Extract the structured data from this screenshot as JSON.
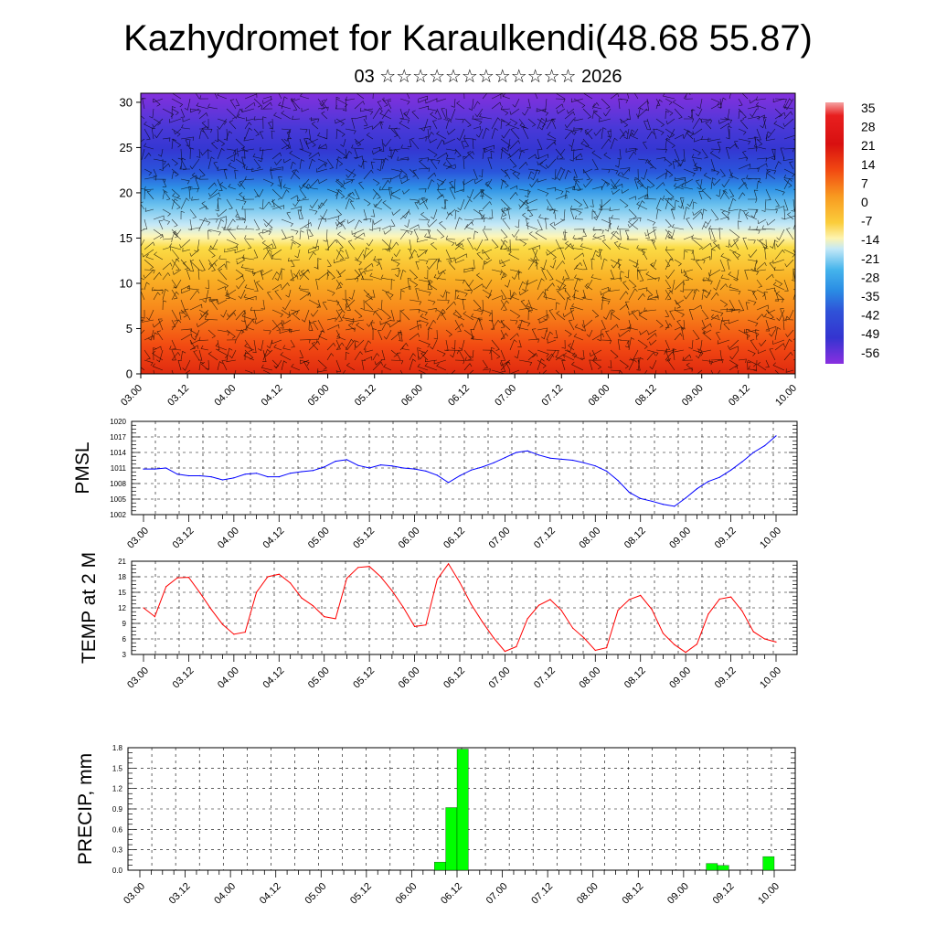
{
  "title": "Kazhydromet for Karaulkendi(48.68 55.87)",
  "subtitle": "03 ☆☆☆☆☆☆☆☆☆☆☆☆ 2026",
  "time_labels": [
    "03.00",
    "03.12",
    "04.00",
    "04.12",
    "05.00",
    "05.12",
    "06.00",
    "06.12",
    "07.00",
    "07.12",
    "08.00",
    "08.12",
    "09.00",
    "09.12",
    "10.00"
  ],
  "colorbar_labels": [
    "35",
    "28",
    "21",
    "14",
    "7",
    "0",
    "-7",
    "-14",
    "-21",
    "-28",
    "-35",
    "-42",
    "-49",
    "-56"
  ],
  "colors": {
    "pmsl_line": "#0000ff",
    "temp_line": "#ff0000",
    "precip_bar": "#00ff00"
  },
  "chart_data": [
    {
      "type": "heatmap",
      "description_of_content": "vertical cross-section of temperature with wind barbs",
      "x_tick_labels": [
        "03.00",
        "03.12",
        "04.00",
        "04.12",
        "05.00",
        "05.12",
        "06.00",
        "06.12",
        "07.00",
        "07.12",
        "08.00",
        "08.12",
        "09.00",
        "09.12",
        "10.00"
      ],
      "y_ticks": [
        0,
        5,
        10,
        15,
        20,
        25,
        30
      ],
      "ylim": [
        0,
        31
      ],
      "colorbar": [
        "35",
        "28",
        "21",
        "14",
        "7",
        "0",
        "-7",
        "-14",
        "-21",
        "-28",
        "-35",
        "-42",
        "-49",
        "-56"
      ]
    },
    {
      "type": "line",
      "ylabel": "PMSL",
      "ylim": [
        1002,
        1020
      ],
      "y_ticks": [
        "1002",
        "1005",
        "1008",
        "1011",
        "1014",
        "1017",
        "1020"
      ],
      "x_tick_labels": [
        "03.00",
        "03.12",
        "04.00",
        "04.12",
        "05.00",
        "05.12",
        "06.00",
        "06.12",
        "07.00",
        "07.12",
        "08.00",
        "08.12",
        "09.00",
        "09.12",
        "10.00"
      ],
      "x": [
        0,
        3,
        6,
        9,
        12,
        15,
        18,
        21,
        24,
        27,
        30,
        33,
        36,
        39,
        42,
        45,
        48,
        51,
        54,
        57,
        60,
        63,
        66,
        69,
        72,
        75,
        78,
        81,
        84,
        87,
        90,
        93,
        96,
        99,
        102,
        105,
        108,
        111,
        114,
        117,
        120,
        123,
        126,
        129,
        132,
        135,
        138,
        141,
        144,
        147,
        150,
        153,
        156,
        159,
        162,
        165,
        168
      ],
      "values": [
        1010.8,
        1010.8,
        1011.0,
        1009.8,
        1009.5,
        1009.5,
        1009.3,
        1008.7,
        1009.1,
        1009.8,
        1010.0,
        1009.3,
        1009.3,
        1010.0,
        1010.3,
        1010.5,
        1011.2,
        1012.3,
        1012.6,
        1011.5,
        1011.0,
        1011.6,
        1011.4,
        1011.0,
        1010.8,
        1010.4,
        1009.6,
        1008.2,
        1009.5,
        1010.6,
        1011.2,
        1012.0,
        1013.0,
        1014.0,
        1014.3,
        1013.5,
        1012.9,
        1012.7,
        1012.5,
        1012.0,
        1011.4,
        1010.4,
        1008.6,
        1006.3,
        1005.1,
        1004.6,
        1004.0,
        1003.6,
        1005.2,
        1007.0,
        1008.4,
        1009.2,
        1010.6,
        1012.2,
        1014.0,
        1015.3,
        1017.2
      ]
    },
    {
      "type": "line",
      "ylabel": "TEMP at 2 M",
      "ylim": [
        3,
        21
      ],
      "y_ticks": [
        "3",
        "6",
        "9",
        "12",
        "15",
        "18",
        "21"
      ],
      "x_tick_labels": [
        "03.00",
        "03.12",
        "04.00",
        "04.12",
        "05.00",
        "05.12",
        "06.00",
        "06.12",
        "07.00",
        "07.12",
        "08.00",
        "08.12",
        "09.00",
        "09.12",
        "10.00"
      ],
      "x": [
        0,
        3,
        6,
        9,
        12,
        15,
        18,
        21,
        24,
        27,
        30,
        33,
        36,
        39,
        42,
        45,
        48,
        51,
        54,
        57,
        60,
        63,
        66,
        69,
        72,
        75,
        78,
        81,
        84,
        87,
        90,
        93,
        96,
        99,
        102,
        105,
        108,
        111,
        114,
        117,
        120,
        123,
        126,
        129,
        132,
        135,
        138,
        141,
        144,
        147,
        150,
        153,
        156,
        159,
        162,
        165,
        168
      ],
      "values": [
        12.0,
        10.3,
        16.1,
        17.8,
        17.9,
        14.9,
        11.7,
        8.8,
        6.9,
        7.3,
        15.0,
        18.0,
        18.5,
        16.8,
        13.9,
        12.4,
        10.3,
        9.9,
        17.7,
        19.8,
        20.0,
        18.0,
        15.3,
        12.1,
        8.4,
        8.7,
        17.5,
        20.5,
        16.9,
        12.7,
        9.3,
        6.2,
        3.6,
        4.5,
        9.9,
        12.5,
        13.6,
        11.5,
        8.1,
        6.2,
        3.8,
        4.3,
        11.5,
        13.6,
        14.4,
        11.7,
        7.1,
        4.9,
        3.4,
        5.0,
        10.8,
        13.7,
        14.1,
        11.4,
        7.4,
        6.0,
        5.4
      ]
    },
    {
      "type": "bar",
      "ylabel": "PRECIP, mm",
      "ylim": [
        0,
        1.8
      ],
      "y_ticks": [
        "0.0",
        "0.3",
        "0.6",
        "0.9",
        "1.2",
        "1.5",
        "1.8"
      ],
      "x_tick_labels": [
        "03.00",
        "03.12",
        "04.00",
        "04.12",
        "05.00",
        "05.12",
        "06.00",
        "06.12",
        "07.00",
        "07.12",
        "08.00",
        "08.12",
        "09.00",
        "09.12",
        "10.00"
      ],
      "x": [
        81,
        84,
        87,
        153,
        156,
        168
      ],
      "values": [
        0.12,
        0.92,
        1.78,
        0.1,
        0.07,
        0.2
      ]
    }
  ]
}
